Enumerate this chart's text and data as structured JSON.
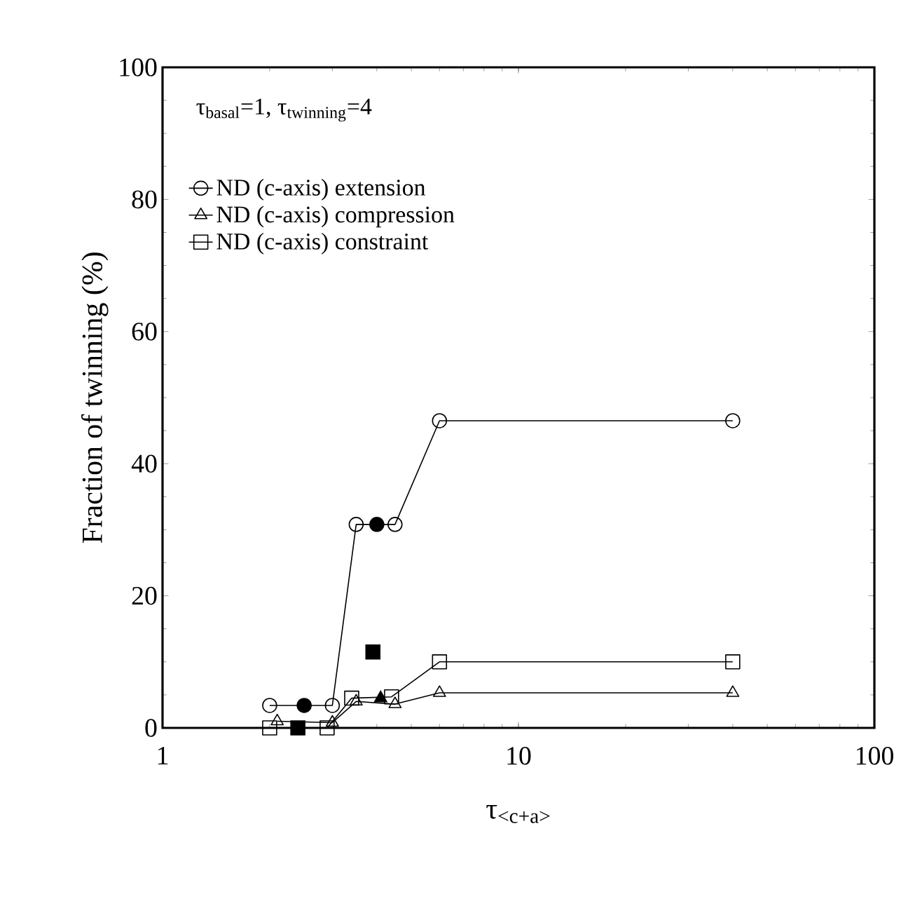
{
  "chart_data": {
    "type": "line",
    "xlabel": "τ$_{<c+a>}$",
    "ylabel": "Fraction of twinning (%)",
    "annotations": [
      "τ$_{basal}$=1, τ$_{twinning}$=4"
    ],
    "log": "x",
    "xlim": [
      1,
      100
    ],
    "xticks": [
      1,
      10,
      100
    ],
    "ylim": [
      0,
      100
    ],
    "yticks": [
      0,
      20,
      40,
      60,
      80,
      100
    ],
    "grid": false,
    "legend": "top left",
    "line_style": "solid",
    "series": [
      {
        "name": "ND (c-axis) extension",
        "color": "#000000",
        "marker": "circle",
        "x": [
          2.0,
          3.0,
          3.5,
          4.5,
          6.0,
          40
        ],
        "values": [
          3.4,
          3.4,
          30.8,
          30.8,
          46.5,
          46.5
        ]
      },
      {
        "name": "ND (c-axis) compression",
        "color": "#000000",
        "marker": "triangle",
        "x": [
          2.1,
          3.0,
          3.5,
          4.5,
          6.0,
          40
        ],
        "values": [
          1,
          0.8,
          4,
          3.6,
          5.3,
          5.3
        ]
      },
      {
        "name": "ND (c-axis) constraint",
        "color": "#000000",
        "marker": "square",
        "x": [
          2.0,
          2.9,
          3.4,
          4.4,
          6.0,
          40
        ],
        "values": [
          0,
          0,
          4.5,
          4.7,
          10,
          10
        ]
      },
      {
        "type": "scatter",
        "color": "#000000",
        "marker": "circle",
        "x": [
          2.5,
          4.0
        ],
        "values": [
          3.4,
          30.8
        ]
      },
      {
        "type": "scatter",
        "color": "#000000",
        "marker": "triangle",
        "x": [
          4.1
        ],
        "values": [
          4.5
        ]
      },
      {
        "type": "scatter",
        "color": "#000000",
        "marker": "square",
        "x": [
          2.4,
          3.9
        ],
        "values": [
          0,
          11.5
        ]
      }
    ]
  }
}
